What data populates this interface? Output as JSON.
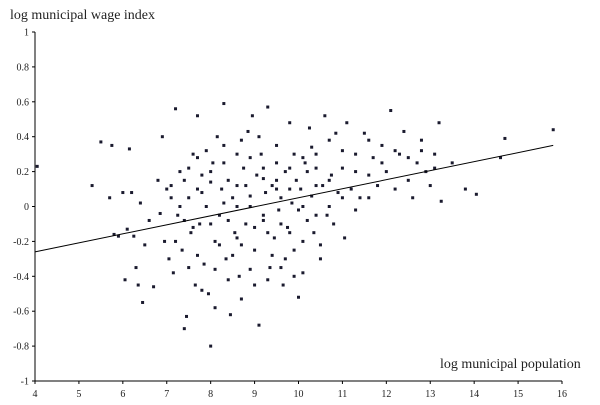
{
  "chart_data": {
    "type": "scatter",
    "title": "",
    "xlabel": "log  municipal population",
    "ylabel": "log municipal wage index",
    "xlim": [
      4,
      16
    ],
    "ylim": [
      -1,
      1
    ],
    "xticks": [
      4,
      5,
      6,
      7,
      8,
      9,
      10,
      11,
      12,
      13,
      14,
      15,
      16
    ],
    "yticks": [
      1,
      0.8,
      0.6,
      0.4,
      0.2,
      0,
      -0.2,
      -0.4,
      -0.6,
      -0.8,
      -1
    ],
    "grid": false,
    "legend": "none",
    "trendline": {
      "x": [
        4,
        15.8
      ],
      "y": [
        -0.26,
        0.35
      ]
    },
    "points": [
      [
        4.05,
        0.23
      ],
      [
        5.3,
        0.12
      ],
      [
        5.5,
        0.37
      ],
      [
        5.7,
        0.05
      ],
      [
        5.75,
        0.35
      ],
      [
        5.8,
        -0.16
      ],
      [
        5.9,
        -0.17
      ],
      [
        6.0,
        0.08
      ],
      [
        6.05,
        -0.42
      ],
      [
        6.1,
        -0.13
      ],
      [
        6.15,
        0.33
      ],
      [
        6.2,
        0.08
      ],
      [
        6.25,
        -0.17
      ],
      [
        6.3,
        -0.35
      ],
      [
        6.35,
        -0.45
      ],
      [
        6.4,
        0.02
      ],
      [
        6.45,
        -0.55
      ],
      [
        6.5,
        -0.22
      ],
      [
        6.6,
        -0.08
      ],
      [
        6.7,
        -0.46
      ],
      [
        6.8,
        0.15
      ],
      [
        6.85,
        -0.04
      ],
      [
        6.9,
        0.4
      ],
      [
        6.95,
        -0.2
      ],
      [
        7.0,
        0.1
      ],
      [
        7.05,
        -0.3
      ],
      [
        7.1,
        0.12
      ],
      [
        7.15,
        -0.38
      ],
      [
        7.2,
        0.56
      ],
      [
        7.25,
        -0.05
      ],
      [
        7.3,
        0.2
      ],
      [
        7.35,
        -0.25
      ],
      [
        7.4,
        -0.7
      ],
      [
        7.45,
        -0.63
      ],
      [
        7.5,
        0.05
      ],
      [
        7.55,
        -0.15
      ],
      [
        7.6,
        0.3
      ],
      [
        7.65,
        -0.45
      ],
      [
        7.7,
        0.52
      ],
      [
        7.75,
        -0.1
      ],
      [
        7.8,
        0.18
      ],
      [
        7.85,
        -0.33
      ],
      [
        7.9,
        0.0
      ],
      [
        7.95,
        -0.5
      ],
      [
        8.0,
        -0.8
      ],
      [
        8.05,
        0.25
      ],
      [
        8.1,
        -0.2
      ],
      [
        8.15,
        0.4
      ],
      [
        8.2,
        -0.05
      ],
      [
        8.25,
        0.1
      ],
      [
        8.3,
        0.59
      ],
      [
        8.35,
        -0.3
      ],
      [
        8.4,
        0.15
      ],
      [
        8.45,
        -0.62
      ],
      [
        8.5,
        0.05
      ],
      [
        8.55,
        -0.15
      ],
      [
        8.6,
        0.3
      ],
      [
        8.65,
        -0.4
      ],
      [
        8.7,
        -0.53
      ],
      [
        8.75,
        0.22
      ],
      [
        8.8,
        -0.1
      ],
      [
        8.85,
        0.43
      ],
      [
        8.9,
        0.0
      ],
      [
        8.95,
        0.52
      ],
      [
        9.0,
        -0.25
      ],
      [
        9.05,
        0.18
      ],
      [
        9.1,
        -0.68
      ],
      [
        9.15,
        0.3
      ],
      [
        9.2,
        -0.05
      ],
      [
        9.25,
        0.08
      ],
      [
        9.3,
        0.57
      ],
      [
        9.35,
        -0.35
      ],
      [
        9.4,
        0.12
      ],
      [
        9.45,
        -0.18
      ],
      [
        9.5,
        0.35
      ],
      [
        9.55,
        -0.02
      ],
      [
        9.6,
        0.05
      ],
      [
        9.65,
        -0.45
      ],
      [
        9.7,
        0.2
      ],
      [
        9.75,
        -0.12
      ],
      [
        9.8,
        0.48
      ],
      [
        9.85,
        0.02
      ],
      [
        9.9,
        -0.25
      ],
      [
        9.95,
        0.15
      ],
      [
        10.0,
        -0.52
      ],
      [
        10.05,
        0.1
      ],
      [
        10.1,
        -0.38
      ],
      [
        10.15,
        0.25
      ],
      [
        10.2,
        -0.08
      ],
      [
        10.25,
        0.45
      ],
      [
        10.3,
        0.06
      ],
      [
        10.35,
        -0.15
      ],
      [
        10.4,
        0.3
      ],
      [
        10.5,
        -0.22
      ],
      [
        10.55,
        0.12
      ],
      [
        10.6,
        0.52
      ],
      [
        10.65,
        -0.05
      ],
      [
        10.7,
        0.38
      ],
      [
        10.75,
        0.18
      ],
      [
        10.8,
        -0.1
      ],
      [
        10.85,
        0.42
      ],
      [
        10.9,
        0.08
      ],
      [
        11.0,
        0.22
      ],
      [
        11.05,
        -0.18
      ],
      [
        11.1,
        0.48
      ],
      [
        11.2,
        0.1
      ],
      [
        11.3,
        0.3
      ],
      [
        11.4,
        0.05
      ],
      [
        11.5,
        0.42
      ],
      [
        11.6,
        0.18
      ],
      [
        11.7,
        0.28
      ],
      [
        11.8,
        0.12
      ],
      [
        11.9,
        0.35
      ],
      [
        12.0,
        0.2
      ],
      [
        12.1,
        0.55
      ],
      [
        12.2,
        0.1
      ],
      [
        12.3,
        0.3
      ],
      [
        12.4,
        0.43
      ],
      [
        12.5,
        0.15
      ],
      [
        12.6,
        0.05
      ],
      [
        12.7,
        0.25
      ],
      [
        12.8,
        0.38
      ],
      [
        12.9,
        0.2
      ],
      [
        13.0,
        0.12
      ],
      [
        13.1,
        0.3
      ],
      [
        13.2,
        0.48
      ],
      [
        13.25,
        0.03
      ],
      [
        13.5,
        0.25
      ],
      [
        13.8,
        0.1
      ],
      [
        14.05,
        0.07
      ],
      [
        14.6,
        0.28
      ],
      [
        14.7,
        0.39
      ],
      [
        15.8,
        0.44
      ],
      [
        7.3,
        0.0
      ],
      [
        7.6,
        -0.12
      ],
      [
        7.8,
        0.08
      ],
      [
        8.0,
        0.14
      ],
      [
        8.2,
        -0.22
      ],
      [
        8.4,
        -0.08
      ],
      [
        8.6,
        0.0
      ],
      [
        8.8,
        0.12
      ],
      [
        9.0,
        -0.12
      ],
      [
        9.2,
        0.16
      ],
      [
        9.4,
        -0.28
      ],
      [
        9.6,
        -0.1
      ],
      [
        9.8,
        0.1
      ],
      [
        10.0,
        -0.02
      ],
      [
        10.2,
        0.2
      ],
      [
        10.4,
        -0.05
      ],
      [
        7.5,
        0.22
      ],
      [
        7.9,
        0.32
      ],
      [
        8.3,
        0.35
      ],
      [
        8.7,
        0.38
      ],
      [
        9.1,
        0.4
      ],
      [
        9.5,
        0.25
      ],
      [
        9.9,
        0.3
      ],
      [
        10.3,
        0.34
      ],
      [
        7.7,
        -0.28
      ],
      [
        8.1,
        -0.36
      ],
      [
        8.5,
        -0.28
      ],
      [
        8.9,
        -0.36
      ],
      [
        9.3,
        -0.42
      ],
      [
        9.7,
        -0.3
      ],
      [
        10.1,
        -0.2
      ],
      [
        10.5,
        -0.3
      ],
      [
        7.4,
        -0.08
      ],
      [
        7.7,
        0.1
      ],
      [
        8.0,
        -0.1
      ],
      [
        8.3,
        0.02
      ],
      [
        8.6,
        -0.18
      ],
      [
        8.9,
        0.06
      ],
      [
        9.2,
        -0.08
      ],
      [
        9.5,
        0.1
      ],
      [
        9.8,
        -0.15
      ],
      [
        10.1,
        0.0
      ],
      [
        10.4,
        0.12
      ],
      [
        10.7,
        0.0
      ],
      [
        11.0,
        0.05
      ],
      [
        11.3,
        -0.02
      ],
      [
        11.6,
        0.05
      ],
      [
        7.2,
        -0.2
      ],
      [
        7.5,
        -0.35
      ],
      [
        7.8,
        -0.48
      ],
      [
        8.1,
        -0.58
      ],
      [
        8.4,
        -0.42
      ],
      [
        8.7,
        -0.22
      ],
      [
        9.0,
        -0.45
      ],
      [
        9.3,
        -0.15
      ],
      [
        9.6,
        -0.35
      ],
      [
        9.9,
        -0.4
      ],
      [
        7.1,
        0.05
      ],
      [
        7.4,
        0.15
      ],
      [
        7.7,
        0.28
      ],
      [
        8.0,
        0.2
      ],
      [
        8.3,
        0.25
      ],
      [
        8.6,
        0.12
      ],
      [
        8.9,
        0.28
      ],
      [
        9.2,
        0.22
      ],
      [
        9.5,
        0.15
      ],
      [
        9.8,
        0.22
      ],
      [
        10.1,
        0.28
      ],
      [
        10.4,
        0.22
      ],
      [
        10.7,
        0.15
      ],
      [
        11.0,
        0.32
      ],
      [
        11.3,
        0.2
      ],
      [
        11.6,
        0.38
      ],
      [
        11.9,
        0.25
      ],
      [
        12.2,
        0.32
      ],
      [
        12.5,
        0.28
      ],
      [
        12.8,
        0.32
      ],
      [
        13.1,
        0.22
      ]
    ]
  }
}
